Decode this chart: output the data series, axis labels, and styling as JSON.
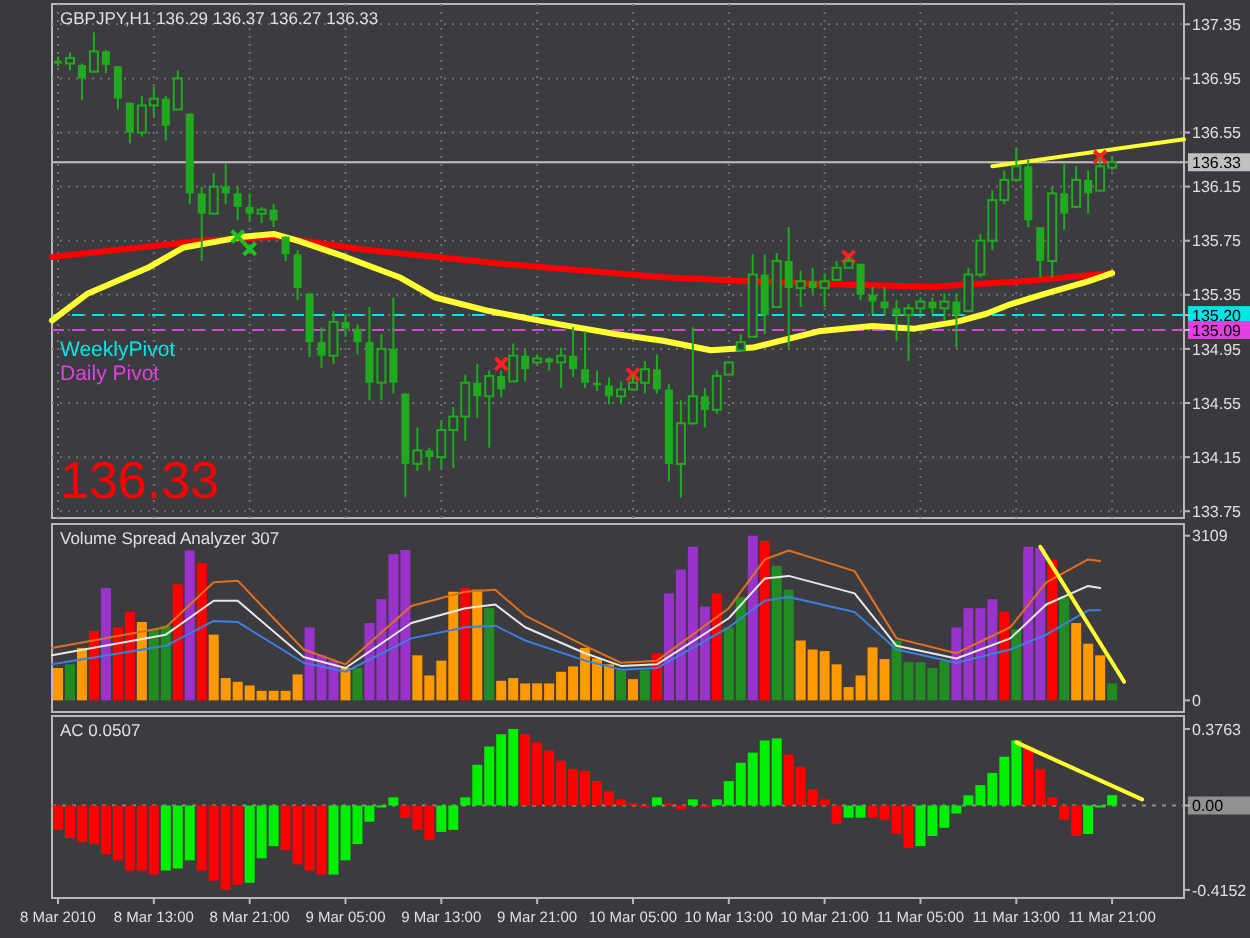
{
  "chart_data": [
    {
      "type": "candlestick",
      "title": "GBPJPY,H1 136.29 136.37 136.27 136.33",
      "annotations": [
        "136.33"
      ],
      "color": "#1faa1f",
      "x": [
        "2010-03-08T05:00",
        "2010-03-08T06:00",
        "2010-03-08T07:00",
        "2010-03-08T08:00",
        "2010-03-08T09:00",
        "2010-03-08T10:00",
        "2010-03-08T11:00",
        "2010-03-08T12:00",
        "2010-03-08T13:00",
        "2010-03-08T14:00",
        "2010-03-08T15:00",
        "2010-03-08T16:00",
        "2010-03-08T17:00",
        "2010-03-08T18:00",
        "2010-03-08T19:00",
        "2010-03-08T20:00",
        "2010-03-08T21:00",
        "2010-03-08T22:00",
        "2010-03-08T23:00",
        "2010-03-09T00:00",
        "2010-03-09T01:00",
        "2010-03-09T02:00",
        "2010-03-09T03:00",
        "2010-03-09T04:00",
        "2010-03-09T05:00",
        "2010-03-09T06:00",
        "2010-03-09T07:00",
        "2010-03-09T08:00",
        "2010-03-09T09:00",
        "2010-03-09T10:00",
        "2010-03-09T11:00",
        "2010-03-09T12:00",
        "2010-03-09T13:00",
        "2010-03-09T14:00",
        "2010-03-09T15:00",
        "2010-03-09T16:00",
        "2010-03-09T17:00",
        "2010-03-09T18:00",
        "2010-03-09T19:00",
        "2010-03-09T20:00",
        "2010-03-09T21:00",
        "2010-03-09T22:00",
        "2010-03-09T23:00",
        "2010-03-10T00:00",
        "2010-03-10T01:00",
        "2010-03-10T02:00",
        "2010-03-10T03:00",
        "2010-03-10T04:00",
        "2010-03-10T05:00",
        "2010-03-10T06:00",
        "2010-03-10T07:00",
        "2010-03-10T08:00",
        "2010-03-10T09:00",
        "2010-03-10T10:00",
        "2010-03-10T11:00",
        "2010-03-10T12:00",
        "2010-03-10T13:00",
        "2010-03-10T14:00",
        "2010-03-10T15:00",
        "2010-03-10T16:00",
        "2010-03-10T17:00",
        "2010-03-10T18:00",
        "2010-03-10T19:00",
        "2010-03-10T20:00",
        "2010-03-10T21:00",
        "2010-03-10T22:00",
        "2010-03-10T23:00",
        "2010-03-11T00:00",
        "2010-03-11T01:00",
        "2010-03-11T02:00",
        "2010-03-11T03:00",
        "2010-03-11T04:00",
        "2010-03-11T05:00",
        "2010-03-11T06:00",
        "2010-03-11T07:00",
        "2010-03-11T08:00",
        "2010-03-11T09:00",
        "2010-03-11T10:00",
        "2010-03-11T11:00",
        "2010-03-11T12:00",
        "2010-03-11T13:00",
        "2010-03-11T14:00",
        "2010-03-11T15:00",
        "2010-03-11T16:00",
        "2010-03-11T17:00",
        "2010-03-11T18:00",
        "2010-03-11T19:00",
        "2010-03-11T20:00",
        "2010-03-11T21:00"
      ],
      "ohlc": [
        [
          137.08,
          137.11,
          137.04,
          137.06
        ],
        [
          137.06,
          137.14,
          137.01,
          137.1
        ],
        [
          137.05,
          137.06,
          136.79,
          136.95
        ],
        [
          137.0,
          137.29,
          136.99,
          137.15
        ],
        [
          137.15,
          137.16,
          136.99,
          137.05
        ],
        [
          137.04,
          137.04,
          136.72,
          136.8
        ],
        [
          136.77,
          136.77,
          136.47,
          136.55
        ],
        [
          136.55,
          136.82,
          136.52,
          136.75
        ],
        [
          136.75,
          136.89,
          136.67,
          136.8
        ],
        [
          136.8,
          136.82,
          136.49,
          136.6
        ],
        [
          136.72,
          137.01,
          136.72,
          136.95
        ],
        [
          136.69,
          136.69,
          136.02,
          136.1
        ],
        [
          136.1,
          136.15,
          135.6,
          135.95
        ],
        [
          135.95,
          136.25,
          135.95,
          136.15
        ],
        [
          136.15,
          136.32,
          136.02,
          136.1
        ],
        [
          136.1,
          136.15,
          135.9,
          136.0
        ],
        [
          136.0,
          136.1,
          135.9,
          135.95
        ],
        [
          135.95,
          136.0,
          135.88,
          135.98
        ],
        [
          135.98,
          136.02,
          135.85,
          135.9
        ],
        [
          135.78,
          135.78,
          135.6,
          135.65
        ],
        [
          135.65,
          135.68,
          135.31,
          135.4
        ],
        [
          135.36,
          135.36,
          134.89,
          135.0
        ],
        [
          135.0,
          135.11,
          134.81,
          134.9
        ],
        [
          134.9,
          135.23,
          134.84,
          135.15
        ],
        [
          135.15,
          135.21,
          135.04,
          135.1
        ],
        [
          135.1,
          135.13,
          134.91,
          135.0
        ],
        [
          135.0,
          135.26,
          134.57,
          134.7
        ],
        [
          134.7,
          135.06,
          134.57,
          134.95
        ],
        [
          134.95,
          135.33,
          134.62,
          134.7
        ],
        [
          134.62,
          134.62,
          133.85,
          134.1
        ],
        [
          134.1,
          134.37,
          134.05,
          134.2
        ],
        [
          134.2,
          134.22,
          134.05,
          134.15
        ],
        [
          134.15,
          134.42,
          134.07,
          134.35
        ],
        [
          134.35,
          134.52,
          134.07,
          134.45
        ],
        [
          134.45,
          134.76,
          134.27,
          134.7
        ],
        [
          134.7,
          134.84,
          134.44,
          134.6
        ],
        [
          134.6,
          134.79,
          134.22,
          134.75
        ],
        [
          134.75,
          134.79,
          134.59,
          134.65
        ],
        [
          134.71,
          134.99,
          134.71,
          134.9
        ],
        [
          134.9,
          134.94,
          134.71,
          134.8
        ],
        [
          134.85,
          134.91,
          134.84,
          134.88
        ],
        [
          134.88,
          134.89,
          134.79,
          134.85
        ],
        [
          134.85,
          134.96,
          134.66,
          134.9
        ],
        [
          134.9,
          135.11,
          134.74,
          134.8
        ],
        [
          134.8,
          135.08,
          134.66,
          134.7
        ],
        [
          134.7,
          134.79,
          134.64,
          134.68
        ],
        [
          134.68,
          134.74,
          134.54,
          134.6
        ],
        [
          134.6,
          134.71,
          134.54,
          134.65
        ],
        [
          134.65,
          134.76,
          134.64,
          134.7
        ],
        [
          134.7,
          134.86,
          134.62,
          134.8
        ],
        [
          134.8,
          134.91,
          134.62,
          134.65
        ],
        [
          134.65,
          134.69,
          133.97,
          134.1
        ],
        [
          134.1,
          134.57,
          133.85,
          134.4
        ],
        [
          134.4,
          135.11,
          134.39,
          134.6
        ],
        [
          134.6,
          134.66,
          134.37,
          134.5
        ],
        [
          134.5,
          134.79,
          134.47,
          134.75
        ],
        [
          134.76,
          134.86,
          134.76,
          134.85
        ],
        [
          134.94,
          135.06,
          134.94,
          135.0
        ],
        [
          135.04,
          135.65,
          135.04,
          135.5
        ],
        [
          135.5,
          135.65,
          135.06,
          135.2
        ],
        [
          135.26,
          135.66,
          135.26,
          135.6
        ],
        [
          135.6,
          135.85,
          134.96,
          135.4
        ],
        [
          135.4,
          135.53,
          135.26,
          135.45
        ],
        [
          135.45,
          135.55,
          135.36,
          135.4
        ],
        [
          135.4,
          135.51,
          135.26,
          135.45
        ],
        [
          135.46,
          135.6,
          135.46,
          135.55
        ],
        [
          135.55,
          135.63,
          135.55,
          135.6
        ],
        [
          135.58,
          135.58,
          135.31,
          135.35
        ],
        [
          135.35,
          135.41,
          135.21,
          135.3
        ],
        [
          135.3,
          135.41,
          135.21,
          135.25
        ],
        [
          135.25,
          135.31,
          135.01,
          135.2
        ],
        [
          135.2,
          135.28,
          134.86,
          135.25
        ],
        [
          135.25,
          135.33,
          135.21,
          135.3
        ],
        [
          135.3,
          135.33,
          135.21,
          135.25
        ],
        [
          135.25,
          135.36,
          135.16,
          135.3
        ],
        [
          135.3,
          135.36,
          134.96,
          135.2
        ],
        [
          135.23,
          135.55,
          135.23,
          135.5
        ],
        [
          135.5,
          135.8,
          135.48,
          135.75
        ],
        [
          135.75,
          136.12,
          135.68,
          136.05
        ],
        [
          136.05,
          136.27,
          136.02,
          136.2
        ],
        [
          136.2,
          136.44,
          136.2,
          136.3
        ],
        [
          136.3,
          136.35,
          135.85,
          135.9
        ],
        [
          135.85,
          135.85,
          135.48,
          135.6
        ],
        [
          135.6,
          136.15,
          135.48,
          136.1
        ],
        [
          136.1,
          136.32,
          135.83,
          135.95
        ],
        [
          136.0,
          136.3,
          136.0,
          136.2
        ],
        [
          136.2,
          136.27,
          135.95,
          136.1
        ],
        [
          136.12,
          136.37,
          136.12,
          136.3
        ],
        [
          136.29,
          136.37,
          136.27,
          136.33
        ]
      ],
      "series": [
        {
          "type": "line",
          "color": "#ff0000",
          "x": [
            "2010-03-08T04:30",
            "2010-03-08T17:00",
            "2010-03-08T23:00",
            "2010-03-09T07:00",
            "2010-03-09T18:00",
            "2010-03-10T07:30",
            "2010-03-10T12:30",
            "2010-03-10T20:30",
            "2010-03-11T06:00",
            "2010-03-11T13:30",
            "2010-03-11T21:00"
          ],
          "values": [
            135.63,
            135.75,
            135.78,
            135.68,
            135.58,
            135.48,
            135.46,
            135.43,
            135.41,
            135.45,
            135.51
          ]
        },
        {
          "type": "line",
          "color": "#ffff33",
          "x": [
            "2010-03-08T04:30",
            "2010-03-08T07:30",
            "2010-03-08T12:30",
            "2010-03-08T15:30",
            "2010-03-08T20:30",
            "2010-03-08T23:00",
            "2010-03-09T01:00",
            "2010-03-09T05:00",
            "2010-03-09T09:30",
            "2010-03-09T12:30",
            "2010-03-09T17:00",
            "2010-03-09T23:00",
            "2010-03-10T03:30",
            "2010-03-10T07:30",
            "2010-03-10T11:30",
            "2010-03-10T15:00",
            "2010-03-10T20:30",
            "2010-03-11T01:00",
            "2010-03-11T04:30",
            "2010-03-11T08:00",
            "2010-03-11T10:30",
            "2010-03-11T12:30",
            "2010-03-11T15:30",
            "2010-03-11T19:00",
            "2010-03-11T21:00"
          ],
          "values": [
            135.16,
            135.36,
            135.55,
            135.7,
            135.78,
            135.8,
            135.75,
            135.63,
            135.48,
            135.33,
            135.23,
            135.13,
            135.06,
            135.01,
            134.94,
            134.96,
            135.08,
            135.12,
            135.1,
            135.15,
            135.21,
            135.28,
            135.36,
            135.45,
            135.51
          ]
        },
        {
          "type": "line",
          "color": "#ffff33",
          "x": [
            "2010-03-11T11:00",
            "2010-03-12T03:00"
          ],
          "values": [
            136.3,
            136.5
          ]
        },
        {
          "type": "scatter",
          "marker": "cross",
          "color": "#ff2020",
          "x": [
            "2010-03-09T18:00",
            "2010-03-10T05:00",
            "2010-03-10T23:00",
            "2010-03-11T20:00"
          ],
          "values": [
            134.84,
            134.76,
            135.63,
            136.37
          ]
        },
        {
          "type": "scatter",
          "marker": "cross",
          "color": "#20c020",
          "x": [
            "2010-03-08T20:00",
            "2010-03-08T21:00"
          ],
          "values": [
            135.78,
            135.69
          ]
        }
      ],
      "ref_lines": [
        {
          "axis": "y",
          "value": 135.2,
          "label": "WeeklyPivot",
          "color": "#00e5e5",
          "line_style": "dashed"
        },
        {
          "axis": "y",
          "value": 135.09,
          "label": "Daily Pivot",
          "color": "#e040e0",
          "line_style": "dashed"
        },
        {
          "axis": "y",
          "value": 136.33,
          "color": "#c0c0c0",
          "line_style": "solid"
        }
      ],
      "xlim": [
        "2010-03-08T04:30",
        "2010-03-12T03:00"
      ],
      "xticks": [
        "2010-03-08T05:00",
        "2010-03-08T13:00",
        "2010-03-08T21:00",
        "2010-03-09T05:00",
        "2010-03-09T13:00",
        "2010-03-09T21:00",
        "2010-03-10T05:00",
        "2010-03-10T13:00",
        "2010-03-10T21:00",
        "2010-03-11T05:00",
        "2010-03-11T13:00",
        "2010-03-11T21:00"
      ],
      "ylim": [
        133.7,
        137.5
      ],
      "yticks": [
        133.75,
        134.15,
        134.55,
        134.95,
        135.35,
        135.75,
        136.15,
        136.55,
        136.95,
        137.35,
        {
          "value": 136.33,
          "label": "136.33"
        },
        {
          "value": 135.2,
          "label": "135.20"
        },
        {
          "value": 135.09,
          "label": "135.09"
        }
      ],
      "grid": true,
      "tick_labels": "y"
    },
    {
      "type": "bar",
      "title": "Volume Spread Analyzer 307",
      "x": [
        "2010-03-08T05:00",
        "2010-03-08T06:00",
        "2010-03-08T07:00",
        "2010-03-08T08:00",
        "2010-03-08T09:00",
        "2010-03-08T10:00",
        "2010-03-08T11:00",
        "2010-03-08T12:00",
        "2010-03-08T13:00",
        "2010-03-08T14:00",
        "2010-03-08T15:00",
        "2010-03-08T16:00",
        "2010-03-08T17:00",
        "2010-03-08T18:00",
        "2010-03-08T19:00",
        "2010-03-08T20:00",
        "2010-03-08T21:00",
        "2010-03-08T22:00",
        "2010-03-08T23:00",
        "2010-03-09T00:00",
        "2010-03-09T01:00",
        "2010-03-09T02:00",
        "2010-03-09T03:00",
        "2010-03-09T04:00",
        "2010-03-09T05:00",
        "2010-03-09T06:00",
        "2010-03-09T07:00",
        "2010-03-09T08:00",
        "2010-03-09T09:00",
        "2010-03-09T10:00",
        "2010-03-09T11:00",
        "2010-03-09T12:00",
        "2010-03-09T13:00",
        "2010-03-09T14:00",
        "2010-03-09T15:00",
        "2010-03-09T16:00",
        "2010-03-09T17:00",
        "2010-03-09T18:00",
        "2010-03-09T19:00",
        "2010-03-09T20:00",
        "2010-03-09T21:00",
        "2010-03-09T22:00",
        "2010-03-09T23:00",
        "2010-03-10T00:00",
        "2010-03-10T01:00",
        "2010-03-10T02:00",
        "2010-03-10T03:00",
        "2010-03-10T04:00",
        "2010-03-10T05:00",
        "2010-03-10T06:00",
        "2010-03-10T07:00",
        "2010-03-10T08:00",
        "2010-03-10T09:00",
        "2010-03-10T10:00",
        "2010-03-10T11:00",
        "2010-03-10T12:00",
        "2010-03-10T13:00",
        "2010-03-10T14:00",
        "2010-03-10T15:00",
        "2010-03-10T16:00",
        "2010-03-10T17:00",
        "2010-03-10T18:00",
        "2010-03-10T19:00",
        "2010-03-10T20:00",
        "2010-03-10T21:00",
        "2010-03-10T22:00",
        "2010-03-10T23:00",
        "2010-03-11T00:00",
        "2010-03-11T01:00",
        "2010-03-11T02:00",
        "2010-03-11T03:00",
        "2010-03-11T04:00",
        "2010-03-11T05:00",
        "2010-03-11T06:00",
        "2010-03-11T07:00",
        "2010-03-11T08:00",
        "2010-03-11T09:00",
        "2010-03-11T10:00",
        "2010-03-11T11:00",
        "2010-03-11T12:00",
        "2010-03-11T13:00",
        "2010-03-11T14:00",
        "2010-03-11T15:00",
        "2010-03-11T16:00",
        "2010-03-11T17:00",
        "2010-03-11T18:00",
        "2010-03-11T19:00",
        "2010-03-11T20:00",
        "2010-03-11T21:00"
      ],
      "series": [
        {
          "values": [
            610,
            680,
            990,
            1310,
            2120,
            1380,
            1670,
            1480,
            1340,
            1410,
            2190,
            2830,
            2590,
            1240,
            420,
            350,
            280,
            180,
            180,
            180,
            490,
            1380,
            850,
            750,
            610,
            610,
            1460,
            1910,
            2760,
            2840,
            850,
            470,
            750,
            2050,
            2120,
            2090,
            1740,
            370,
            420,
            320,
            320,
            320,
            540,
            640,
            990,
            790,
            680,
            570,
            400,
            570,
            890,
            2020,
            2470,
            2900,
            1770,
            2020,
            1380,
            1950,
            3109,
            3010,
            2540,
            2090,
            1130,
            960,
            930,
            680,
            250,
            470,
            1000,
            780,
            1130,
            720,
            720,
            610,
            750,
            1380,
            1740,
            1740,
            1910,
            1670,
            1340,
            2900,
            2870,
            2660,
            1950,
            1460,
            1070,
            850,
            320
          ],
          "colors": [
            "#ff9900",
            "#228b22",
            "#ff9900",
            "#ff0000",
            "#9933cc",
            "#ff0000",
            "#ff0000",
            "#ff9900",
            "#228b22",
            "#228b22",
            "#ff0000",
            "#9933cc",
            "#ff0000",
            "#ff9900",
            "#ff9900",
            "#ff9900",
            "#ff9900",
            "#ff9900",
            "#ff9900",
            "#ff9900",
            "#ff9900",
            "#9933cc",
            "#9933cc",
            "#9933cc",
            "#ff9900",
            "#228b22",
            "#9933cc",
            "#9933cc",
            "#9933cc",
            "#9933cc",
            "#ff9900",
            "#ff9900",
            "#ff9900",
            "#ff9900",
            "#ff0000",
            "#ff9900",
            "#228b22",
            "#ff9900",
            "#ff9900",
            "#ff9900",
            "#ff9900",
            "#ff9900",
            "#ff9900",
            "#ff9900",
            "#ff9900",
            "#ff9900",
            "#ff9900",
            "#228b22",
            "#ff9900",
            "#228b22",
            "#ff0000",
            "#9933cc",
            "#9933cc",
            "#9933cc",
            "#9933cc",
            "#ff0000",
            "#228b22",
            "#228b22",
            "#9933cc",
            "#ff0000",
            "#228b22",
            "#228b22",
            "#ff9900",
            "#ff9900",
            "#ff9900",
            "#ff9900",
            "#ff9900",
            "#ff9900",
            "#ff9900",
            "#ff9900",
            "#228b22",
            "#228b22",
            "#228b22",
            "#228b22",
            "#228b22",
            "#9933cc",
            "#9933cc",
            "#9933cc",
            "#9933cc",
            "#ff0000",
            "#228b22",
            "#9933cc",
            "#9933cc",
            "#ff0000",
            "#228b22",
            "#ff9900",
            "#ff9900",
            "#ff9900",
            "#228b22"
          ]
        },
        {
          "type": "line",
          "color": "#e07020",
          "x": [
            "2010-03-08T04:30",
            "2010-03-08T14:00",
            "2010-03-08T18:00",
            "2010-03-08T20:00",
            "2010-03-09T01:30",
            "2010-03-09T05:00",
            "2010-03-09T10:30",
            "2010-03-09T15:00",
            "2010-03-09T17:30",
            "2010-03-09T20:00",
            "2010-03-10T01:00",
            "2010-03-10T04:00",
            "2010-03-10T07:00",
            "2010-03-10T13:00",
            "2010-03-10T16:00",
            "2010-03-10T18:00",
            "2010-03-10T23:30",
            "2010-03-11T03:00",
            "2010-03-11T08:00",
            "2010-03-11T12:30",
            "2010-03-11T15:30",
            "2010-03-11T19:00",
            "2010-03-11T20:00"
          ],
          "values": [
            990,
            1380,
            2230,
            2260,
            960,
            680,
            1780,
            2050,
            2090,
            1600,
            1030,
            710,
            750,
            1740,
            2660,
            2830,
            2440,
            1170,
            890,
            1380,
            2230,
            2660,
            2630
          ]
        },
        {
          "type": "line",
          "color": "#e8e8e8",
          "x": [
            "2010-03-08T04:30",
            "2010-03-08T14:00",
            "2010-03-08T18:00",
            "2010-03-08T20:00",
            "2010-03-09T01:30",
            "2010-03-09T05:00",
            "2010-03-09T10:30",
            "2010-03-09T15:00",
            "2010-03-09T17:30",
            "2010-03-09T20:00",
            "2010-03-10T01:00",
            "2010-03-10T04:00",
            "2010-03-10T07:00",
            "2010-03-10T13:00",
            "2010-03-10T16:00",
            "2010-03-10T18:00",
            "2010-03-10T23:30",
            "2010-03-11T03:00",
            "2010-03-11T08:00",
            "2010-03-11T12:30",
            "2010-03-11T15:30",
            "2010-03-11T19:00",
            "2010-03-11T20:00"
          ],
          "values": [
            850,
            1240,
            1880,
            1880,
            820,
            610,
            1460,
            1740,
            1810,
            1380,
            890,
            650,
            680,
            1550,
            2300,
            2350,
            2020,
            1030,
            790,
            1170,
            1810,
            2160,
            2120
          ]
        },
        {
          "type": "line",
          "color": "#3b7fe0",
          "x": [
            "2010-03-08T04:30",
            "2010-03-08T14:00",
            "2010-03-08T18:00",
            "2010-03-08T20:00",
            "2010-03-09T01:30",
            "2010-03-09T05:00",
            "2010-03-09T10:30",
            "2010-03-09T15:00",
            "2010-03-09T17:30",
            "2010-03-09T20:00",
            "2010-03-10T01:00",
            "2010-03-10T04:00",
            "2010-03-10T07:00",
            "2010-03-10T13:00",
            "2010-03-10T16:00",
            "2010-03-10T18:00",
            "2010-03-10T23:30",
            "2010-03-11T03:00",
            "2010-03-11T08:00",
            "2010-03-11T12:30",
            "2010-03-11T15:30",
            "2010-03-11T19:00",
            "2010-03-11T20:00"
          ],
          "values": [
            680,
            1030,
            1500,
            1480,
            710,
            540,
            1170,
            1380,
            1410,
            1130,
            750,
            580,
            610,
            1380,
            1880,
            1950,
            1670,
            960,
            710,
            960,
            1240,
            1700,
            1700
          ]
        },
        {
          "type": "line",
          "color": "#ffff33",
          "x": [
            "2010-03-11T15:00",
            "2010-03-11T22:00"
          ],
          "values": [
            2900,
            350
          ]
        }
      ],
      "xlim": [
        "2010-03-08T04:30",
        "2010-03-12T03:00"
      ],
      "xticks": [
        "2010-03-08T05:00",
        "2010-03-08T13:00",
        "2010-03-08T21:00",
        "2010-03-09T05:00",
        "2010-03-09T13:00",
        "2010-03-09T21:00",
        "2010-03-10T05:00",
        "2010-03-10T13:00",
        "2010-03-10T21:00",
        "2010-03-11T05:00",
        "2010-03-11T13:00",
        "2010-03-11T21:00"
      ],
      "ylim": [
        -220,
        3330
      ],
      "yticks": [
        0,
        3109
      ],
      "tick_labels": "y"
    },
    {
      "type": "bar",
      "title": "AC 0.0507",
      "x": [
        "2010-03-08T05:00",
        "2010-03-08T06:00",
        "2010-03-08T07:00",
        "2010-03-08T08:00",
        "2010-03-08T09:00",
        "2010-03-08T10:00",
        "2010-03-08T11:00",
        "2010-03-08T12:00",
        "2010-03-08T13:00",
        "2010-03-08T14:00",
        "2010-03-08T15:00",
        "2010-03-08T16:00",
        "2010-03-08T17:00",
        "2010-03-08T18:00",
        "2010-03-08T19:00",
        "2010-03-08T20:00",
        "2010-03-08T21:00",
        "2010-03-08T22:00",
        "2010-03-08T23:00",
        "2010-03-09T00:00",
        "2010-03-09T01:00",
        "2010-03-09T02:00",
        "2010-03-09T03:00",
        "2010-03-09T04:00",
        "2010-03-09T05:00",
        "2010-03-09T06:00",
        "2010-03-09T07:00",
        "2010-03-09T08:00",
        "2010-03-09T09:00",
        "2010-03-09T10:00",
        "2010-03-09T11:00",
        "2010-03-09T12:00",
        "2010-03-09T13:00",
        "2010-03-09T14:00",
        "2010-03-09T15:00",
        "2010-03-09T16:00",
        "2010-03-09T17:00",
        "2010-03-09T18:00",
        "2010-03-09T19:00",
        "2010-03-09T20:00",
        "2010-03-09T21:00",
        "2010-03-09T22:00",
        "2010-03-09T23:00",
        "2010-03-10T00:00",
        "2010-03-10T01:00",
        "2010-03-10T02:00",
        "2010-03-10T03:00",
        "2010-03-10T04:00",
        "2010-03-10T05:00",
        "2010-03-10T06:00",
        "2010-03-10T07:00",
        "2010-03-10T08:00",
        "2010-03-10T09:00",
        "2010-03-10T10:00",
        "2010-03-10T11:00",
        "2010-03-10T12:00",
        "2010-03-10T13:00",
        "2010-03-10T14:00",
        "2010-03-10T15:00",
        "2010-03-10T16:00",
        "2010-03-10T17:00",
        "2010-03-10T18:00",
        "2010-03-10T19:00",
        "2010-03-10T20:00",
        "2010-03-10T21:00",
        "2010-03-10T22:00",
        "2010-03-10T23:00",
        "2010-03-11T00:00",
        "2010-03-11T01:00",
        "2010-03-11T02:00",
        "2010-03-11T03:00",
        "2010-03-11T04:00",
        "2010-03-11T05:00",
        "2010-03-11T06:00",
        "2010-03-11T07:00",
        "2010-03-11T08:00",
        "2010-03-11T09:00",
        "2010-03-11T10:00",
        "2010-03-11T11:00",
        "2010-03-11T12:00",
        "2010-03-11T13:00",
        "2010-03-11T14:00",
        "2010-03-11T15:00",
        "2010-03-11T16:00",
        "2010-03-11T17:00",
        "2010-03-11T18:00",
        "2010-03-11T19:00",
        "2010-03-11T20:00",
        "2010-03-11T21:00"
      ],
      "series": [
        {
          "values": [
            -0.12,
            -0.16,
            -0.18,
            -0.19,
            -0.24,
            -0.27,
            -0.32,
            -0.32,
            -0.34,
            -0.32,
            -0.31,
            -0.27,
            -0.32,
            -0.37,
            -0.4152,
            -0.39,
            -0.38,
            -0.26,
            -0.2,
            -0.22,
            -0.29,
            -0.32,
            -0.34,
            -0.34,
            -0.27,
            -0.19,
            -0.08,
            -0.01,
            0.04,
            -0.06,
            -0.12,
            -0.17,
            -0.13,
            -0.12,
            0.04,
            0.2,
            0.29,
            0.35,
            0.3763,
            0.35,
            0.31,
            0.27,
            0.22,
            0.18,
            0.17,
            0.12,
            0.07,
            0.03,
            0.01,
            -0.01,
            0.04,
            0.01,
            -0.02,
            0.03,
            -0.01,
            0.03,
            0.12,
            0.21,
            0.26,
            0.32,
            0.33,
            0.25,
            0.19,
            0.08,
            0.03,
            -0.09,
            -0.06,
            -0.06,
            -0.06,
            -0.07,
            -0.14,
            -0.21,
            -0.2,
            -0.15,
            -0.11,
            -0.04,
            0.05,
            0.1,
            0.16,
            0.24,
            0.32,
            0.29,
            0.18,
            0.04,
            -0.07,
            -0.15,
            -0.14,
            -0.01,
            0.0507
          ],
          "colors": [
            "#ff0000",
            "#ff0000",
            "#ff0000",
            "#ff0000",
            "#ff0000",
            "#ff0000",
            "#ff0000",
            "#ff0000",
            "#ff0000",
            "#00ee00",
            "#00ee00",
            "#00ee00",
            "#ff0000",
            "#ff0000",
            "#ff0000",
            "#ff0000",
            "#00ee00",
            "#00ee00",
            "#00ee00",
            "#ff0000",
            "#ff0000",
            "#ff0000",
            "#ff0000",
            "#00ee00",
            "#00ee00",
            "#00ee00",
            "#00ee00",
            "#00ee00",
            "#00ee00",
            "#ff0000",
            "#ff0000",
            "#ff0000",
            "#00ee00",
            "#00ee00",
            "#00ee00",
            "#00ee00",
            "#00ee00",
            "#00ee00",
            "#00ee00",
            "#ff0000",
            "#ff0000",
            "#ff0000",
            "#ff0000",
            "#ff0000",
            "#ff0000",
            "#ff0000",
            "#ff0000",
            "#ff0000",
            "#ff0000",
            "#ff0000",
            "#00ee00",
            "#ff0000",
            "#ff0000",
            "#00ee00",
            "#ff0000",
            "#00ee00",
            "#00ee00",
            "#00ee00",
            "#00ee00",
            "#00ee00",
            "#00ee00",
            "#ff0000",
            "#ff0000",
            "#ff0000",
            "#ff0000",
            "#ff0000",
            "#00ee00",
            "#00ee00",
            "#ff0000",
            "#ff0000",
            "#ff0000",
            "#ff0000",
            "#00ee00",
            "#00ee00",
            "#00ee00",
            "#00ee00",
            "#00ee00",
            "#00ee00",
            "#00ee00",
            "#00ee00",
            "#00ee00",
            "#ff0000",
            "#ff0000",
            "#ff0000",
            "#ff0000",
            "#ff0000",
            "#00ee00",
            "#00ee00",
            "#00ee00"
          ]
        },
        {
          "type": "line",
          "color": "#ffff33",
          "x": [
            "2010-03-11T13:00",
            "2010-03-11T23:30"
          ],
          "values": [
            0.31,
            0.03
          ]
        }
      ],
      "ref_lines": [
        {
          "axis": "y",
          "value": 0,
          "color": "#909090",
          "line_style": "dotted"
        }
      ],
      "xlim": [
        "2010-03-08T04:30",
        "2010-03-12T03:00"
      ],
      "xticks": [
        {
          "value": "2010-03-08T05:00",
          "label": "8 Mar 2010"
        },
        {
          "value": "2010-03-08T13:00",
          "label": "8 Mar 13:00"
        },
        {
          "value": "2010-03-08T21:00",
          "label": "8 Mar 21:00"
        },
        {
          "value": "2010-03-09T05:00",
          "label": "9 Mar 05:00"
        },
        {
          "value": "2010-03-09T13:00",
          "label": "9 Mar 13:00"
        },
        {
          "value": "2010-03-09T21:00",
          "label": "9 Mar 21:00"
        },
        {
          "value": "2010-03-10T05:00",
          "label": "10 Mar 05:00"
        },
        {
          "value": "2010-03-10T13:00",
          "label": "10 Mar 13:00"
        },
        {
          "value": "2010-03-10T21:00",
          "label": "10 Mar 21:00"
        },
        {
          "value": "2010-03-11T05:00",
          "label": "11 Mar 05:00"
        },
        {
          "value": "2010-03-11T13:00",
          "label": "11 Mar 13:00"
        },
        {
          "value": "2010-03-11T21:00",
          "label": "11 Mar 21:00"
        }
      ],
      "ylim": [
        -0.455,
        0.44
      ],
      "yticks": [
        -0.4152,
        {
          "value": 0,
          "label": "0.00"
        },
        0.3763
      ]
    }
  ]
}
